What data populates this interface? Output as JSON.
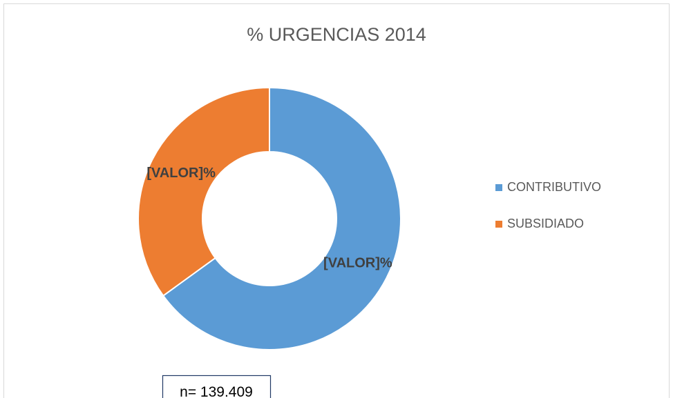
{
  "chart_data": {
    "type": "pie",
    "title": "% URGENCIAS 2014",
    "categories": [
      "CONTRIBUTIVO",
      "SUBSIDIADO"
    ],
    "values": [
      65,
      35
    ],
    "value_labels": [
      "[VALOR]%",
      "[VALOR]%"
    ],
    "colors": [
      "#5b9bd5",
      "#ed7d31"
    ],
    "donut": true,
    "legend": "right",
    "annotation": "n= 139.409"
  }
}
